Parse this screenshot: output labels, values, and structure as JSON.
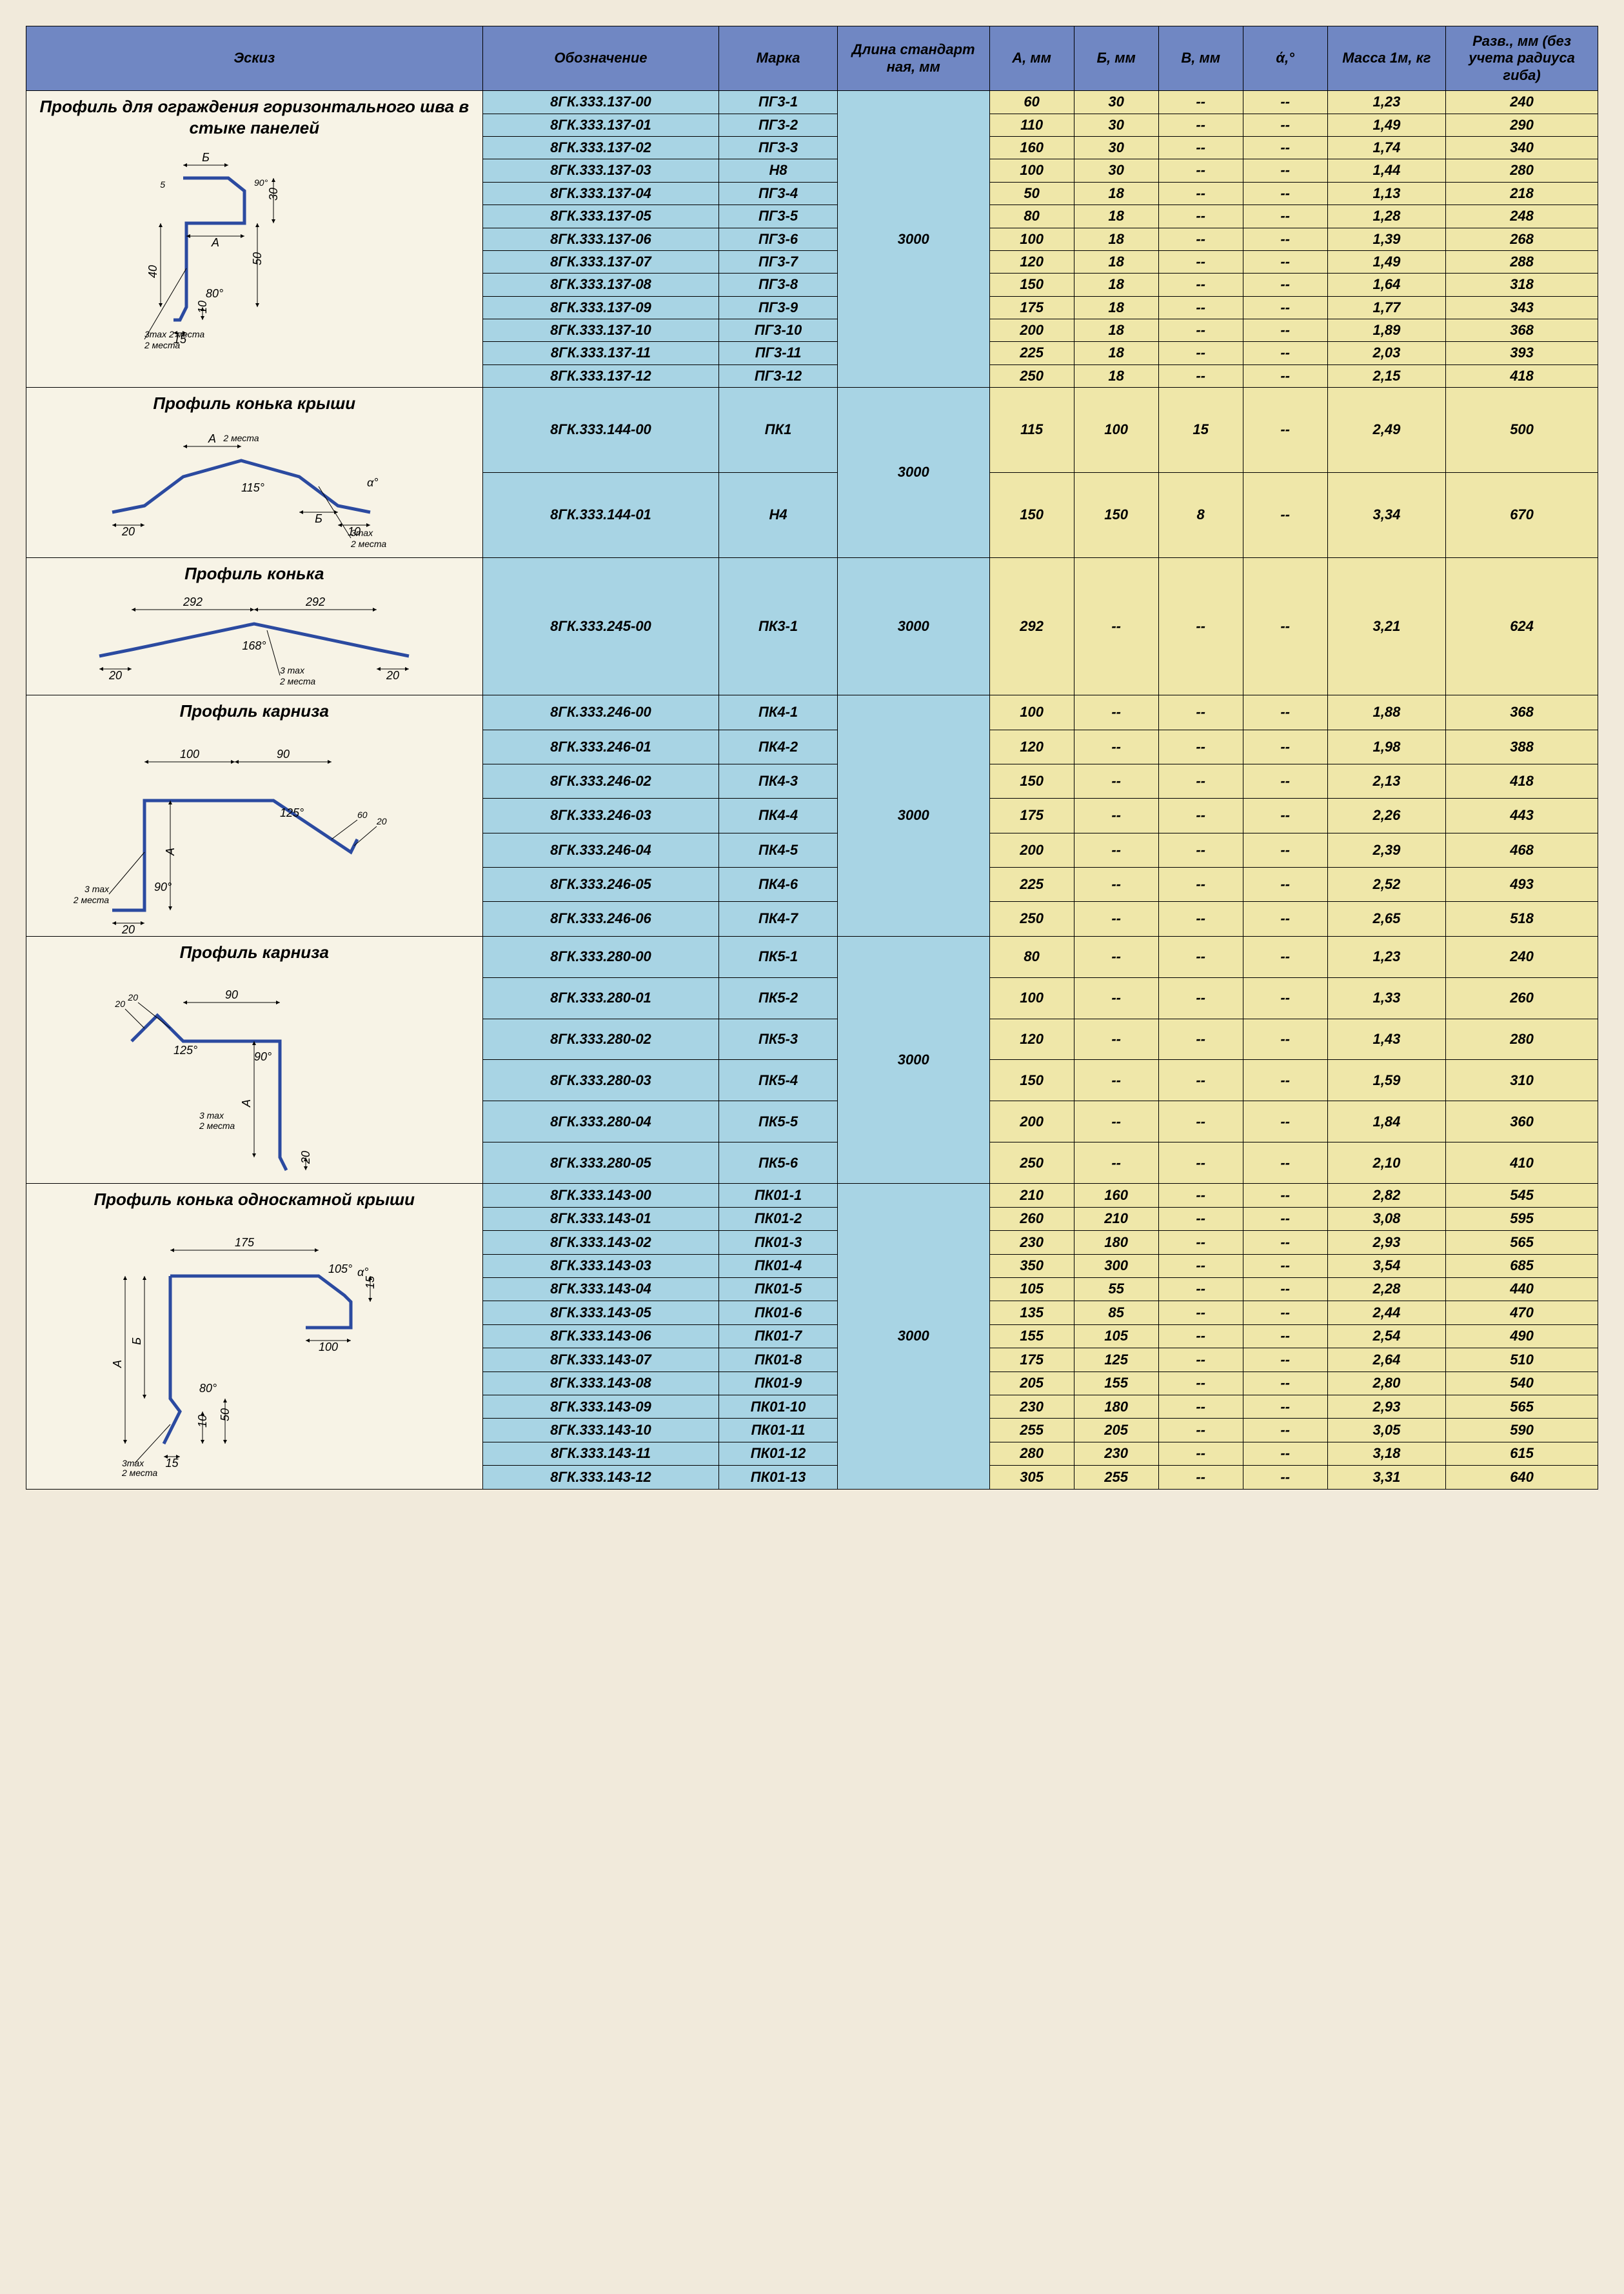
{
  "headers": {
    "sketch": "Эскиз",
    "designation": "Обозначение",
    "mark": "Марка",
    "length": "Длина стандарт ная, мм",
    "a": "А, мм",
    "b": "Б, мм",
    "v": "В, мм",
    "angle": "ά,°",
    "mass": "Масса 1м, кг",
    "dev": "Разв., мм (без учета радиуса гиба)"
  },
  "colors": {
    "page_bg": "#f1eadb",
    "header_bg": "#7087c3",
    "blue_bg": "#a8d4e4",
    "yellow_bg": "#efe7a9",
    "sketch_bg": "#f7f3e6",
    "profile_stroke": "#2b4aa0",
    "border": "#000000"
  },
  "groups": [
    {
      "title": "Профиль для ограждения горизонтального шва в стыке панелей",
      "length": "3000",
      "sketch_labels": {
        "b": "Б",
        "ang90": "90°",
        "thirty": "30",
        "five": "5",
        "a": "А",
        "forty": "40",
        "eighty": "80°",
        "fifteen": "15",
        "ten": "10",
        "fifty": "50",
        "lines": "3тах\n2 места"
      },
      "rows": [
        {
          "designation": "8ГК.333.137-00",
          "mark": "ПГ3-1",
          "a": "60",
          "b": "30",
          "v": "--",
          "angle": "--",
          "mass": "1,23",
          "dev": "240"
        },
        {
          "designation": "8ГК.333.137-01",
          "mark": "ПГ3-2",
          "a": "110",
          "b": "30",
          "v": "--",
          "angle": "--",
          "mass": "1,49",
          "dev": "290"
        },
        {
          "designation": "8ГК.333.137-02",
          "mark": "ПГ3-3",
          "a": "160",
          "b": "30",
          "v": "--",
          "angle": "--",
          "mass": "1,74",
          "dev": "340"
        },
        {
          "designation": "8ГК.333.137-03",
          "mark": "Н8",
          "a": "100",
          "b": "30",
          "v": "--",
          "angle": "--",
          "mass": "1,44",
          "dev": "280"
        },
        {
          "designation": "8ГК.333.137-04",
          "mark": "ПГ3-4",
          "a": "50",
          "b": "18",
          "v": "--",
          "angle": "--",
          "mass": "1,13",
          "dev": "218"
        },
        {
          "designation": "8ГК.333.137-05",
          "mark": "ПГ3-5",
          "a": "80",
          "b": "18",
          "v": "--",
          "angle": "--",
          "mass": "1,28",
          "dev": "248"
        },
        {
          "designation": "8ГК.333.137-06",
          "mark": "ПГ3-6",
          "a": "100",
          "b": "18",
          "v": "--",
          "angle": "--",
          "mass": "1,39",
          "dev": "268"
        },
        {
          "designation": "8ГК.333.137-07",
          "mark": "ПГ3-7",
          "a": "120",
          "b": "18",
          "v": "--",
          "angle": "--",
          "mass": "1,49",
          "dev": "288"
        },
        {
          "designation": "8ГК.333.137-08",
          "mark": "ПГ3-8",
          "a": "150",
          "b": "18",
          "v": "--",
          "angle": "--",
          "mass": "1,64",
          "dev": "318"
        },
        {
          "designation": "8ГК.333.137-09",
          "mark": "ПГ3-9",
          "a": "175",
          "b": "18",
          "v": "--",
          "angle": "--",
          "mass": "1,77",
          "dev": "343"
        },
        {
          "designation": "8ГК.333.137-10",
          "mark": "ПГ3-10",
          "a": "200",
          "b": "18",
          "v": "--",
          "angle": "--",
          "mass": "1,89",
          "dev": "368"
        },
        {
          "designation": "8ГК.333.137-11",
          "mark": "ПГ3-11",
          "a": "225",
          "b": "18",
          "v": "--",
          "angle": "--",
          "mass": "2,03",
          "dev": "393"
        },
        {
          "designation": "8ГК.333.137-12",
          "mark": "ПГ3-12",
          "a": "250",
          "b": "18",
          "v": "--",
          "angle": "--",
          "mass": "2,15",
          "dev": "418"
        }
      ]
    },
    {
      "title": "Профиль конька крыши",
      "length": "3000",
      "sketch_labels": {
        "a": "А",
        "twenty": "20",
        "oneFifteen": "115°",
        "ten": "10",
        "b": "Б",
        "alpha": "α°",
        "lines": "3тах\n2 места",
        "two": "2 места"
      },
      "rows": [
        {
          "designation": "8ГК.333.144-00",
          "mark": "ПК1",
          "a": "115",
          "b": "100",
          "v": "15",
          "angle": "--",
          "mass": "2,49",
          "dev": "500"
        },
        {
          "designation": "8ГК.333.144-01",
          "mark": "Н4",
          "a": "150",
          "b": "150",
          "v": "8",
          "angle": "--",
          "mass": "3,34",
          "dev": "670"
        }
      ]
    },
    {
      "title": "Профиль конька",
      "length": "3000",
      "sketch_labels": {
        "d292": "292",
        "twenty": "20",
        "oneSixtyEight": "168°",
        "lines": "3 тах\n2 места"
      },
      "rows": [
        {
          "designation": "8ГК.333.245-00",
          "mark": "ПК3-1",
          "a": "292",
          "b": "--",
          "v": "--",
          "angle": "--",
          "mass": "3,21",
          "dev": "624"
        }
      ]
    },
    {
      "title": "Профиль карниза",
      "length": "3000",
      "sketch_labels": {
        "hundred": "100",
        "ninety": "90",
        "d125": "125°",
        "a": "А",
        "ninetyDeg": "90°",
        "twenty": "20",
        "lines": "3 тах\n2 места",
        "sixty": "60",
        "twentyShort": "20"
      },
      "rows": [
        {
          "designation": "8ГК.333.246-00",
          "mark": "ПК4-1",
          "a": "100",
          "b": "--",
          "v": "--",
          "angle": "--",
          "mass": "1,88",
          "dev": "368"
        },
        {
          "designation": "8ГК.333.246-01",
          "mark": "ПК4-2",
          "a": "120",
          "b": "--",
          "v": "--",
          "angle": "--",
          "mass": "1,98",
          "dev": "388"
        },
        {
          "designation": "8ГК.333.246-02",
          "mark": "ПК4-3",
          "a": "150",
          "b": "--",
          "v": "--",
          "angle": "--",
          "mass": "2,13",
          "dev": "418"
        },
        {
          "designation": "8ГК.333.246-03",
          "mark": "ПК4-4",
          "a": "175",
          "b": "--",
          "v": "--",
          "angle": "--",
          "mass": "2,26",
          "dev": "443"
        },
        {
          "designation": "8ГК.333.246-04",
          "mark": "ПК4-5",
          "a": "200",
          "b": "--",
          "v": "--",
          "angle": "--",
          "mass": "2,39",
          "dev": "468"
        },
        {
          "designation": "8ГК.333.246-05",
          "mark": "ПК4-6",
          "a": "225",
          "b": "--",
          "v": "--",
          "angle": "--",
          "mass": "2,52",
          "dev": "493"
        },
        {
          "designation": "8ГК.333.246-06",
          "mark": "ПК4-7",
          "a": "250",
          "b": "--",
          "v": "--",
          "angle": "--",
          "mass": "2,65",
          "dev": "518"
        }
      ]
    },
    {
      "title": "Профиль карниза",
      "length": "3000",
      "sketch_labels": {
        "ninety": "90",
        "d125": "125°",
        "ninetyDeg": "90°",
        "a": "А",
        "twenty": "20",
        "lines": "3 тах\n2 места"
      },
      "rows": [
        {
          "designation": "8ГК.333.280-00",
          "mark": "ПК5-1",
          "a": "80",
          "b": "--",
          "v": "--",
          "angle": "--",
          "mass": "1,23",
          "dev": "240"
        },
        {
          "designation": "8ГК.333.280-01",
          "mark": "ПК5-2",
          "a": "100",
          "b": "--",
          "v": "--",
          "angle": "--",
          "mass": "1,33",
          "dev": "260"
        },
        {
          "designation": "8ГК.333.280-02",
          "mark": "ПК5-3",
          "a": "120",
          "b": "--",
          "v": "--",
          "angle": "--",
          "mass": "1,43",
          "dev": "280"
        },
        {
          "designation": "8ГК.333.280-03",
          "mark": "ПК5-4",
          "a": "150",
          "b": "--",
          "v": "--",
          "angle": "--",
          "mass": "1,59",
          "dev": "310"
        },
        {
          "designation": "8ГК.333.280-04",
          "mark": "ПК5-5",
          "a": "200",
          "b": "--",
          "v": "--",
          "angle": "--",
          "mass": "1,84",
          "dev": "360"
        },
        {
          "designation": "8ГК.333.280-05",
          "mark": "ПК5-6",
          "a": "250",
          "b": "--",
          "v": "--",
          "angle": "--",
          "mass": "2,10",
          "dev": "410"
        }
      ]
    },
    {
      "title": "Профиль конька односкатной крыши",
      "length": "3000",
      "sketch_labels": {
        "d175": "175",
        "d105": "105°",
        "alpha": "α°",
        "fifteen": "15",
        "hundred": "100",
        "a": "А",
        "b": "Б",
        "eighty": "80°",
        "fifteenB": "15",
        "ten": "10",
        "fifty": "50",
        "lines": "3тах\n2 места"
      },
      "rows": [
        {
          "designation": "8ГК.333.143-00",
          "mark": "ПК01-1",
          "a": "210",
          "b": "160",
          "v": "--",
          "angle": "--",
          "mass": "2,82",
          "dev": "545"
        },
        {
          "designation": "8ГК.333.143-01",
          "mark": "ПК01-2",
          "a": "260",
          "b": "210",
          "v": "--",
          "angle": "--",
          "mass": "3,08",
          "dev": "595"
        },
        {
          "designation": "8ГК.333.143-02",
          "mark": "ПК01-3",
          "a": "230",
          "b": "180",
          "v": "--",
          "angle": "--",
          "mass": "2,93",
          "dev": "565"
        },
        {
          "designation": "8ГК.333.143-03",
          "mark": "ПК01-4",
          "a": "350",
          "b": "300",
          "v": "--",
          "angle": "--",
          "mass": "3,54",
          "dev": "685"
        },
        {
          "designation": "8ГК.333.143-04",
          "mark": "ПК01-5",
          "a": "105",
          "b": "55",
          "v": "--",
          "angle": "--",
          "mass": "2,28",
          "dev": "440"
        },
        {
          "designation": "8ГК.333.143-05",
          "mark": "ПК01-6",
          "a": "135",
          "b": "85",
          "v": "--",
          "angle": "--",
          "mass": "2,44",
          "dev": "470"
        },
        {
          "designation": "8ГК.333.143-06",
          "mark": "ПК01-7",
          "a": "155",
          "b": "105",
          "v": "--",
          "angle": "--",
          "mass": "2,54",
          "dev": "490"
        },
        {
          "designation": "8ГК.333.143-07",
          "mark": "ПК01-8",
          "a": "175",
          "b": "125",
          "v": "--",
          "angle": "--",
          "mass": "2,64",
          "dev": "510"
        },
        {
          "designation": "8ГК.333.143-08",
          "mark": "ПК01-9",
          "a": "205",
          "b": "155",
          "v": "--",
          "angle": "--",
          "mass": "2,80",
          "dev": "540"
        },
        {
          "designation": "8ГК.333.143-09",
          "mark": "ПК01-10",
          "a": "230",
          "b": "180",
          "v": "--",
          "angle": "--",
          "mass": "2,93",
          "dev": "565"
        },
        {
          "designation": "8ГК.333.143-10",
          "mark": "ПК01-11",
          "a": "255",
          "b": "205",
          "v": "--",
          "angle": "--",
          "mass": "3,05",
          "dev": "590"
        },
        {
          "designation": "8ГК.333.143-11",
          "mark": "ПК01-12",
          "a": "280",
          "b": "230",
          "v": "--",
          "angle": "--",
          "mass": "3,18",
          "dev": "615"
        },
        {
          "designation": "8ГК.333.143-12",
          "mark": "ПК01-13",
          "a": "305",
          "b": "255",
          "v": "--",
          "angle": "--",
          "mass": "3,31",
          "dev": "640"
        }
      ]
    }
  ]
}
